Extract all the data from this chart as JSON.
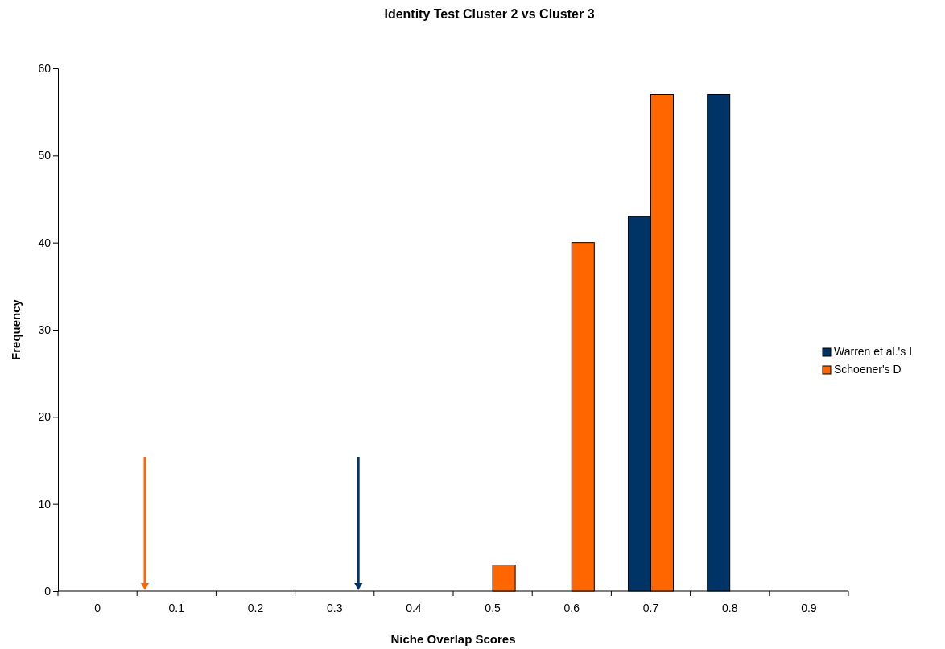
{
  "chart_data": {
    "type": "bar",
    "title": "Identity Test Cluster 2 vs Cluster 3",
    "xlabel": "Niche Overlap Scores",
    "ylabel": "Frequency",
    "categories": [
      "0",
      "0.1",
      "0.2",
      "0.3",
      "0.4",
      "0.5",
      "0.6",
      "0.7",
      "0.8",
      "0.9"
    ],
    "series": [
      {
        "name": "Warren et al.'s I",
        "color": "#003366",
        "values": [
          0,
          0,
          0,
          0,
          0,
          0,
          0,
          43,
          57,
          0
        ]
      },
      {
        "name": "Schoener's D",
        "color": "#ff6600",
        "values": [
          0,
          0,
          0,
          0,
          0,
          3,
          40,
          57,
          0,
          0
        ]
      }
    ],
    "ylim": [
      0,
      60
    ],
    "yticks": [
      0,
      10,
      20,
      30,
      40,
      50,
      60
    ],
    "grid": false,
    "legend": "right"
  }
}
